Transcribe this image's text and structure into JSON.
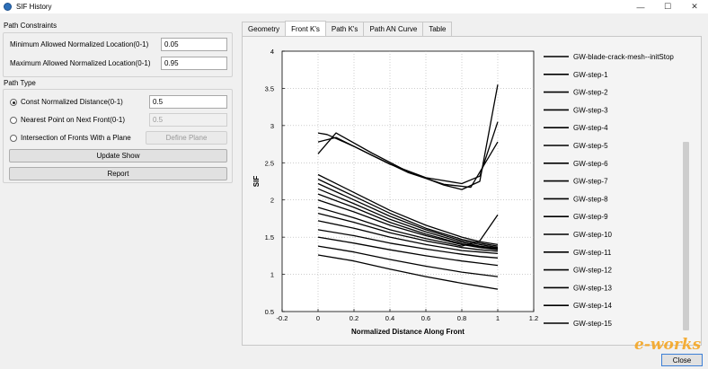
{
  "window": {
    "title": "SIF History",
    "minimize_glyph": "—",
    "maximize_glyph": "☐",
    "close_glyph": "✕"
  },
  "path_constraints": {
    "header": "Path Constraints",
    "min_label": "Minimum Allowed Normalized Location(0-1)",
    "min_value": "0.05",
    "max_label": "Maximum Allowed Normalized Location(0-1)",
    "max_value": "0.95"
  },
  "path_type": {
    "header": "Path Type",
    "options": [
      {
        "label": "Const Normalized Distance(0-1)",
        "value": "0.5",
        "checked": true,
        "enabled": true
      },
      {
        "label": "Nearest Point on Next Front(0-1)",
        "value": "0.5",
        "checked": false,
        "enabled": false
      },
      {
        "label": "Intersection of Fronts With a Plane",
        "checked": false
      }
    ],
    "define_plane_label": "Define Plane",
    "update_show_label": "Update Show",
    "report_label": "Report"
  },
  "tabs": [
    "Geometry",
    "Front K's",
    "Path K's",
    "Path AN Curve",
    "Table"
  ],
  "active_tab": 1,
  "close_label": "Close",
  "watermark": "e-works",
  "chart_data": {
    "type": "line",
    "xlabel": "Normalized Distance Along Front",
    "ylabel": "SIF",
    "xlim": [
      -0.2,
      1.2
    ],
    "ylim": [
      0.5,
      4
    ],
    "xticks": [
      "-0.2",
      "0",
      "0.2",
      "0.4",
      "0.6",
      "0.8",
      "1",
      "1.2"
    ],
    "yticks": [
      "0.5",
      "1",
      "1.5",
      "2",
      "2.5",
      "3",
      "3.5",
      "4"
    ],
    "grid": true,
    "legend_position": "right",
    "series": [
      {
        "name": "GW-blade-crack-mesh--initStop",
        "x": [
          0,
          0.1,
          0.3,
          0.5,
          0.7,
          0.8,
          0.9,
          1
        ],
        "y": [
          2.62,
          2.9,
          2.63,
          2.38,
          2.2,
          2.14,
          2.25,
          3.55
        ]
      },
      {
        "name": "GW-step-1",
        "x": [
          0,
          0.05,
          0.2,
          0.4,
          0.6,
          0.8,
          0.9,
          1
        ],
        "y": [
          2.9,
          2.88,
          2.72,
          2.48,
          2.3,
          2.22,
          2.32,
          3.05
        ]
      },
      {
        "name": "GW-step-2",
        "x": [
          0,
          0.1,
          0.3,
          0.5,
          0.7,
          0.85,
          1
        ],
        "y": [
          2.78,
          2.84,
          2.6,
          2.37,
          2.21,
          2.17,
          2.78
        ]
      },
      {
        "name": "GW-step-3",
        "x": [
          0,
          0.2,
          0.4,
          0.6,
          0.8,
          0.9,
          1
        ],
        "y": [
          2.34,
          2.1,
          1.86,
          1.66,
          1.5,
          1.44,
          1.4
        ]
      },
      {
        "name": "GW-step-4",
        "x": [
          0,
          0.2,
          0.4,
          0.6,
          0.8,
          0.9,
          1
        ],
        "y": [
          2.28,
          2.05,
          1.82,
          1.62,
          1.47,
          1.42,
          1.38
        ]
      },
      {
        "name": "GW-step-5",
        "x": [
          0,
          0.2,
          0.4,
          0.6,
          0.8,
          0.9,
          1
        ],
        "y": [
          2.22,
          2.0,
          1.78,
          1.6,
          1.45,
          1.4,
          1.36
        ]
      },
      {
        "name": "GW-step-6",
        "x": [
          0,
          0.2,
          0.4,
          0.6,
          0.8,
          0.9,
          1
        ],
        "y": [
          2.15,
          1.95,
          1.74,
          1.57,
          1.43,
          1.38,
          1.35
        ]
      },
      {
        "name": "GW-step-7",
        "x": [
          0,
          0.2,
          0.4,
          0.6,
          0.8,
          0.9,
          1
        ],
        "y": [
          2.08,
          1.9,
          1.7,
          1.54,
          1.41,
          1.37,
          1.34
        ]
      },
      {
        "name": "GW-step-8",
        "x": [
          0,
          0.2,
          0.4,
          0.6,
          0.8,
          0.9,
          1
        ],
        "y": [
          2.0,
          1.84,
          1.66,
          1.52,
          1.4,
          1.36,
          1.33
        ]
      },
      {
        "name": "GW-step-9",
        "x": [
          0,
          0.2,
          0.4,
          0.6,
          0.8,
          0.9,
          1
        ],
        "y": [
          1.9,
          1.76,
          1.6,
          1.48,
          1.38,
          1.45,
          1.8
        ]
      },
      {
        "name": "GW-step-10",
        "x": [
          0,
          0.2,
          0.4,
          0.6,
          0.8,
          0.9,
          1
        ],
        "y": [
          1.82,
          1.7,
          1.56,
          1.45,
          1.36,
          1.33,
          1.31
        ]
      },
      {
        "name": "GW-step-11",
        "x": [
          0,
          0.2,
          0.4,
          0.6,
          0.8,
          0.9,
          1
        ],
        "y": [
          1.72,
          1.62,
          1.5,
          1.4,
          1.32,
          1.3,
          1.28
        ]
      },
      {
        "name": "GW-step-12",
        "x": [
          0,
          0.2,
          0.4,
          0.6,
          0.8,
          0.9,
          1
        ],
        "y": [
          1.6,
          1.52,
          1.42,
          1.34,
          1.27,
          1.24,
          1.22
        ]
      },
      {
        "name": "GW-step-13",
        "x": [
          0,
          0.2,
          0.4,
          0.6,
          0.8,
          0.9,
          1
        ],
        "y": [
          1.5,
          1.42,
          1.33,
          1.25,
          1.18,
          1.15,
          1.12
        ]
      },
      {
        "name": "GW-step-14",
        "x": [
          0,
          0.2,
          0.4,
          0.6,
          0.8,
          0.9,
          1
        ],
        "y": [
          1.38,
          1.3,
          1.2,
          1.11,
          1.03,
          1.0,
          0.97
        ]
      },
      {
        "name": "GW-step-15",
        "x": [
          0,
          0.2,
          0.4,
          0.6,
          0.8,
          0.9,
          1
        ],
        "y": [
          1.26,
          1.18,
          1.07,
          0.97,
          0.88,
          0.84,
          0.8
        ]
      }
    ]
  }
}
